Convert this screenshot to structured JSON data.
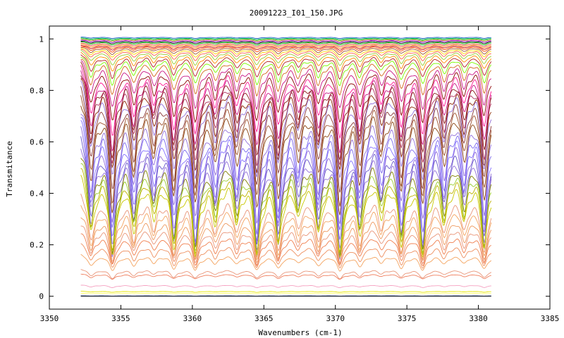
{
  "chart_data": {
    "type": "line",
    "title": "20091223_I01_150.JPG",
    "xlabel": "Wavenumbers (cm-1)",
    "ylabel": "Transmitance",
    "xlim": [
      3350,
      3385
    ],
    "ylim": [
      -0.05,
      1.05
    ],
    "xticks": [
      "3350",
      "3355",
      "3360",
      "3365",
      "3370",
      "3375",
      "3380",
      "3385"
    ],
    "yticks": [
      "0",
      "0.2",
      "0.4",
      "0.6",
      "0.8",
      "1"
    ],
    "x_range_of_data": [
      3352.2,
      3380.9
    ],
    "absorption_lines": [
      3352.9,
      3354.4,
      3355.9,
      3357.3,
      3358.7,
      3360.2,
      3361.6,
      3363.1,
      3364.5,
      3366.0,
      3367.4,
      3368.8,
      3370.3,
      3371.7,
      3373.2,
      3374.6,
      3376.1,
      3377.6,
      3379.0,
      3380.4
    ],
    "series": [
      {
        "baseline": 1.008,
        "depth": 0.005,
        "color": "#3b6fd8"
      },
      {
        "baseline": 1.005,
        "depth": 0.006,
        "color": "#00a651"
      },
      {
        "baseline": 1.002,
        "depth": 0.007,
        "color": "#2ecc40"
      },
      {
        "baseline": 1.0,
        "depth": 0.008,
        "color": "#e8a33d"
      },
      {
        "baseline": 0.997,
        "depth": 0.009,
        "color": "#9400d3"
      },
      {
        "baseline": 0.993,
        "depth": 0.01,
        "color": "#000000"
      },
      {
        "baseline": 0.99,
        "depth": 0.012,
        "color": "#00c000"
      },
      {
        "baseline": 0.986,
        "depth": 0.014,
        "color": "#e04040"
      },
      {
        "baseline": 0.982,
        "depth": 0.016,
        "color": "#ff7f00"
      },
      {
        "baseline": 0.978,
        "depth": 0.018,
        "color": "#c00000"
      },
      {
        "baseline": 0.975,
        "depth": 0.022,
        "color": "#ff4500"
      },
      {
        "baseline": 0.972,
        "depth": 0.028,
        "color": "#a0522d"
      },
      {
        "baseline": 0.968,
        "depth": 0.034,
        "color": "#ffd700"
      },
      {
        "baseline": 0.965,
        "depth": 0.042,
        "color": "#ff6347"
      },
      {
        "baseline": 0.962,
        "depth": 0.055,
        "color": "#9acd32"
      },
      {
        "baseline": 0.958,
        "depth": 0.07,
        "color": "#ff8c00"
      },
      {
        "baseline": 0.954,
        "depth": 0.09,
        "color": "#b22222"
      },
      {
        "baseline": 0.95,
        "depth": 0.11,
        "color": "#7cfc00"
      },
      {
        "baseline": 0.945,
        "depth": 0.14,
        "color": "#d2691e"
      },
      {
        "baseline": 0.94,
        "depth": 0.18,
        "color": "#c71585"
      },
      {
        "baseline": 0.935,
        "depth": 0.22,
        "color": "#8b0000"
      },
      {
        "baseline": 0.93,
        "depth": 0.26,
        "color": "#ff1493"
      },
      {
        "baseline": 0.925,
        "depth": 0.3,
        "color": "#c71585"
      },
      {
        "baseline": 0.918,
        "depth": 0.32,
        "color": "#8b1a1a"
      },
      {
        "baseline": 0.91,
        "depth": 0.34,
        "color": "#b03060"
      },
      {
        "baseline": 0.895,
        "depth": 0.35,
        "color": "#8b2500"
      },
      {
        "baseline": 0.88,
        "depth": 0.36,
        "color": "#9370db"
      },
      {
        "baseline": 0.86,
        "depth": 0.38,
        "color": "#8b3a3a"
      },
      {
        "baseline": 0.84,
        "depth": 0.4,
        "color": "#a0522d"
      },
      {
        "baseline": 0.815,
        "depth": 0.41,
        "color": "#8b4513"
      },
      {
        "baseline": 0.79,
        "depth": 0.43,
        "color": "#9370db"
      },
      {
        "baseline": 0.765,
        "depth": 0.44,
        "color": "#7b68ee"
      },
      {
        "baseline": 0.74,
        "depth": 0.45,
        "color": "#8470ff"
      },
      {
        "baseline": 0.71,
        "depth": 0.44,
        "color": "#9370db"
      },
      {
        "baseline": 0.68,
        "depth": 0.43,
        "color": "#6a5acd"
      },
      {
        "baseline": 0.645,
        "depth": 0.41,
        "color": "#9370db"
      },
      {
        "baseline": 0.61,
        "depth": 0.38,
        "color": "#808000"
      },
      {
        "baseline": 0.575,
        "depth": 0.35,
        "color": "#9acd32"
      },
      {
        "baseline": 0.54,
        "depth": 0.32,
        "color": "#bdb300"
      },
      {
        "baseline": 0.505,
        "depth": 0.3,
        "color": "#c8c800"
      },
      {
        "baseline": 0.43,
        "depth": 0.25,
        "color": "#e9967a"
      },
      {
        "baseline": 0.39,
        "depth": 0.22,
        "color": "#f4a460"
      },
      {
        "baseline": 0.34,
        "depth": 0.18,
        "color": "#ee9a60"
      },
      {
        "baseline": 0.3,
        "depth": 0.15,
        "color": "#e9967a"
      },
      {
        "baseline": 0.26,
        "depth": 0.12,
        "color": "#f08050"
      },
      {
        "baseline": 0.215,
        "depth": 0.09,
        "color": "#ee9060"
      },
      {
        "baseline": 0.17,
        "depth": 0.06,
        "color": "#f4a460"
      },
      {
        "baseline": 0.11,
        "depth": 0.035,
        "color": "#e9967a"
      },
      {
        "baseline": 0.09,
        "depth": 0.02,
        "color": "#f08060"
      },
      {
        "baseline": 0.045,
        "depth": 0.01,
        "color": "#f5a0c0"
      },
      {
        "baseline": 0.02,
        "depth": 0.004,
        "color": "#e6e600"
      },
      {
        "baseline": 0.012,
        "depth": 0.002,
        "color": "#ffff66"
      },
      {
        "baseline": 0.002,
        "depth": 0.001,
        "color": "#2f4f9f"
      },
      {
        "baseline": 0.0,
        "depth": 0.0,
        "color": "#000000"
      }
    ]
  }
}
